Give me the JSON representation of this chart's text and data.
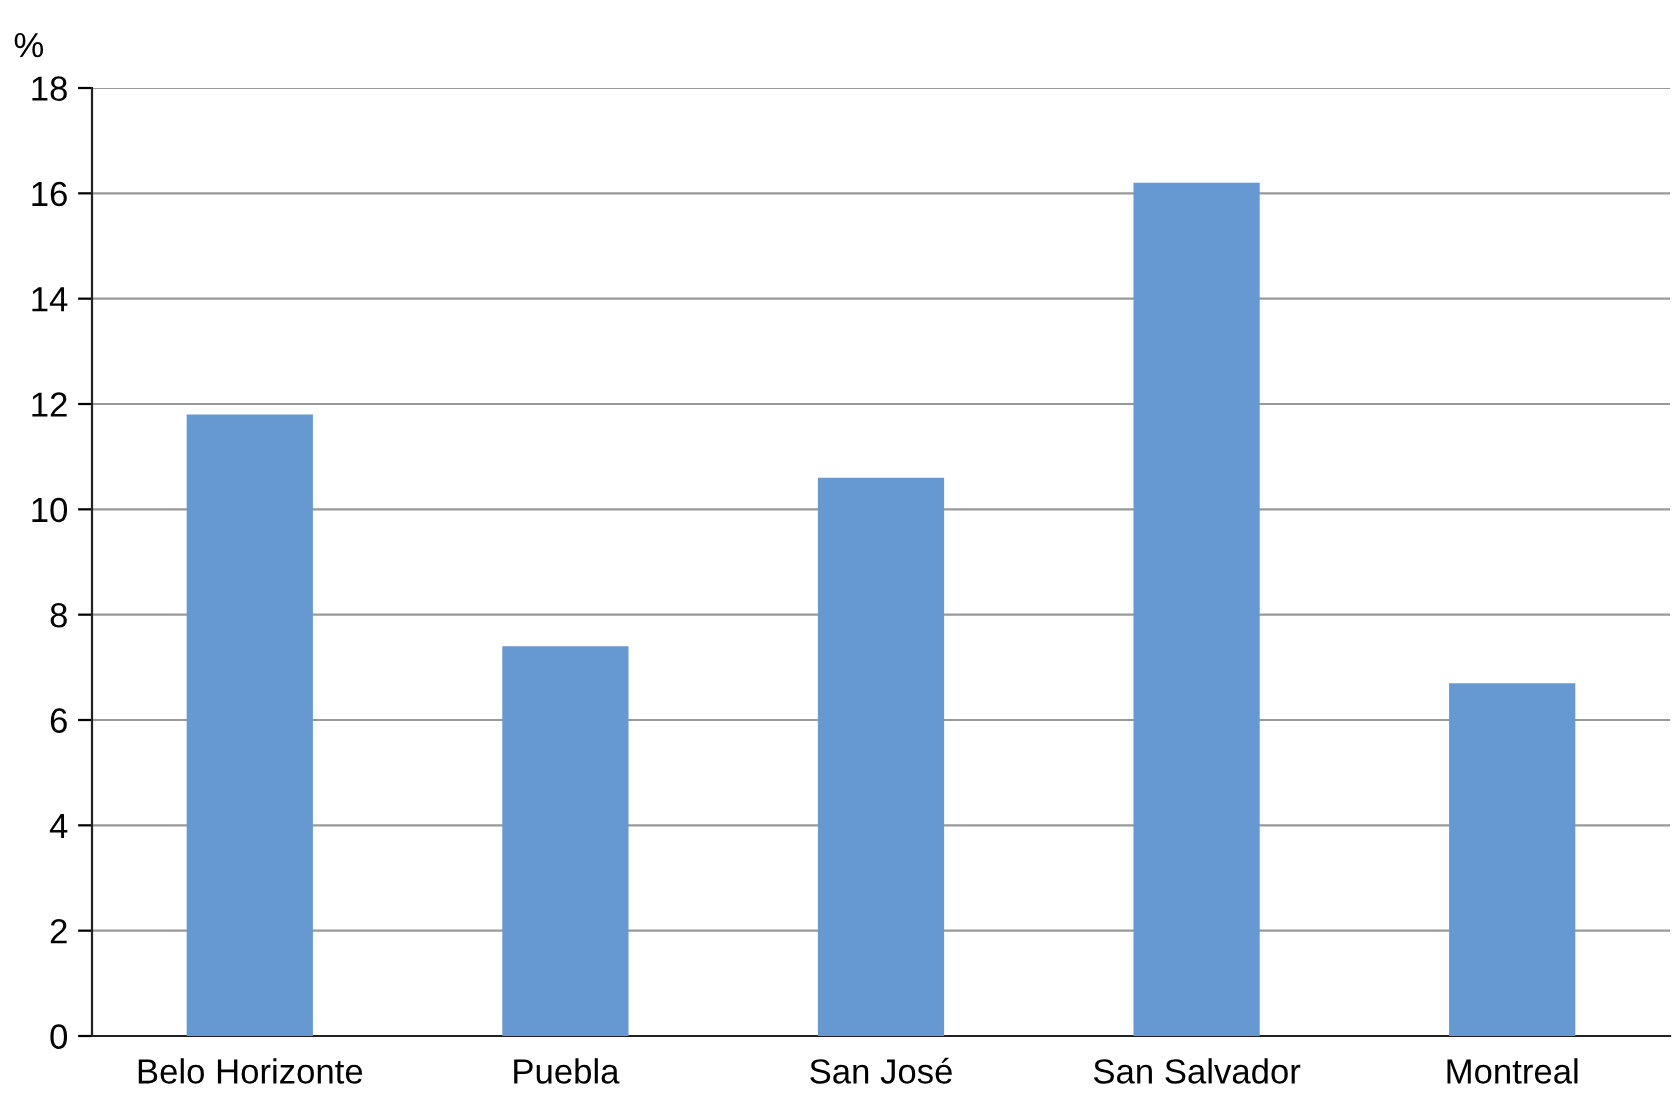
{
  "chart_data": {
    "type": "bar",
    "ylabel": "%",
    "categories": [
      "Belo Horizonte",
      "Puebla",
      "San José",
      "San Salvador",
      "Montreal"
    ],
    "values": [
      11.8,
      7.4,
      10.6,
      16.2,
      6.7
    ],
    "color": "#6699d1",
    "ylim": [
      0,
      18
    ],
    "yticks": [
      0,
      2,
      4,
      6,
      8,
      10,
      12,
      14,
      16,
      18
    ],
    "grid": "y",
    "legend": false
  }
}
